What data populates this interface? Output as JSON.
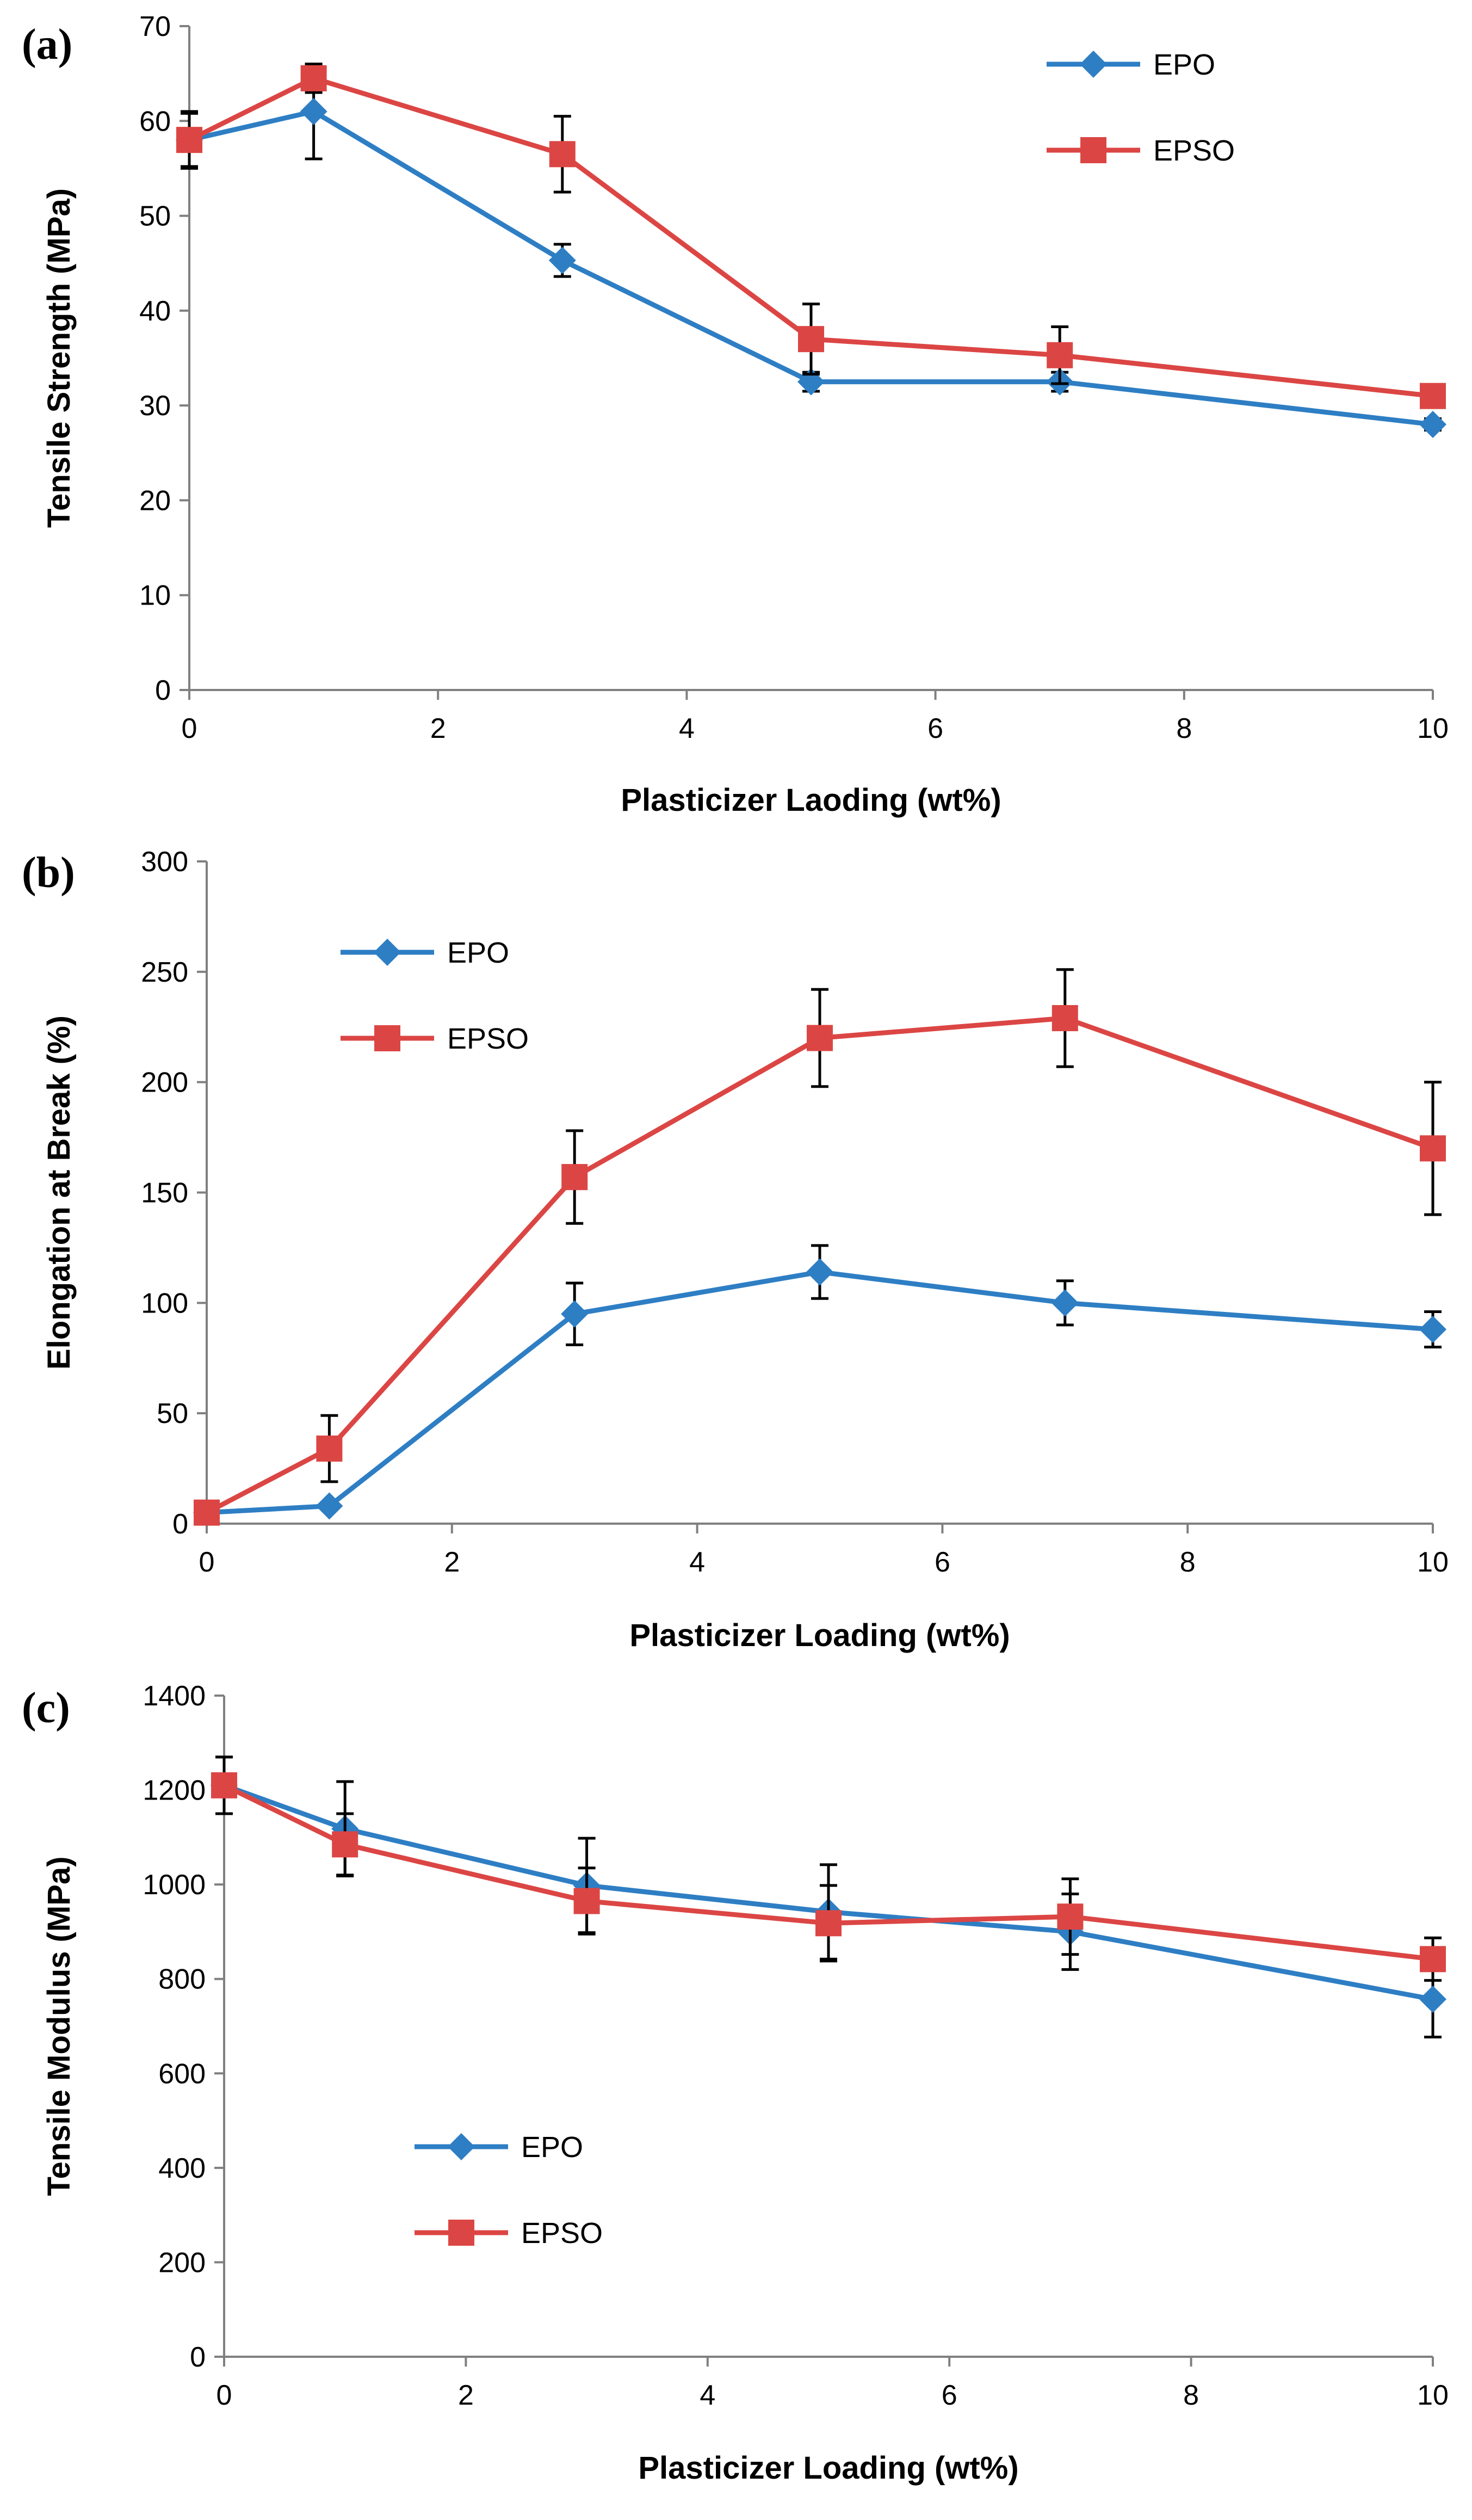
{
  "colors": {
    "EPO": "#2E7EC4",
    "EPSO": "#DB4644",
    "axis": "#808080",
    "error_bar": "#000000"
  },
  "chart_data": [
    {
      "panel": "(a)",
      "type": "line",
      "title": "",
      "xlabel": "Plasticizer Laoding (wt%)",
      "ylabel": "Tensile Strength (MPa)",
      "xlim": [
        0,
        10
      ],
      "ylim": [
        0,
        70
      ],
      "xticks": [
        0,
        2,
        4,
        6,
        8,
        10
      ],
      "yticks": [
        0,
        10,
        20,
        30,
        40,
        50,
        60,
        70
      ],
      "x": [
        0,
        1,
        3,
        5,
        7,
        10
      ],
      "legend_position": "top-right",
      "series": [
        {
          "name": "EPO",
          "marker": "diamond",
          "color": "#2E7EC4",
          "values": [
            58,
            61,
            45.3,
            32.5,
            32.5,
            28
          ],
          "error": [
            3,
            5,
            1.7,
            1,
            1,
            0.6
          ]
        },
        {
          "name": "EPSO",
          "marker": "square",
          "color": "#DB4644",
          "values": [
            58,
            64.5,
            56.5,
            37,
            35.3,
            31
          ],
          "error": [
            2.8,
            1.5,
            4,
            3.7,
            3,
            0.5
          ]
        }
      ]
    },
    {
      "panel": "(b)",
      "type": "line",
      "title": "",
      "xlabel": "Plasticizer Loading (wt%)",
      "ylabel": "Elongation at Break (%)",
      "xlim": [
        0,
        10
      ],
      "ylim": [
        0,
        300
      ],
      "xticks": [
        0,
        2,
        4,
        6,
        8,
        10
      ],
      "yticks": [
        0,
        50,
        100,
        150,
        200,
        250,
        300
      ],
      "x": [
        0,
        1,
        3,
        5,
        7,
        10
      ],
      "legend_position": "top-left",
      "series": [
        {
          "name": "EPO",
          "marker": "diamond",
          "color": "#2E7EC4",
          "values": [
            5,
            8,
            95,
            114,
            100,
            88
          ],
          "error": [
            1,
            1,
            14,
            12,
            10,
            8
          ]
        },
        {
          "name": "EPSO",
          "marker": "square",
          "color": "#DB4644",
          "values": [
            5,
            34,
            157,
            220,
            229,
            170
          ],
          "error": [
            1,
            15,
            21,
            22,
            22,
            30
          ]
        }
      ]
    },
    {
      "panel": "(c)",
      "type": "line",
      "title": "",
      "xlabel": "Plasticizer Loading (wt%)",
      "ylabel": "Tensile Modulus (MPa)",
      "xlim": [
        0,
        10
      ],
      "ylim": [
        0,
        1400
      ],
      "xticks": [
        0,
        2,
        4,
        6,
        8,
        10
      ],
      "yticks": [
        0,
        200,
        400,
        600,
        800,
        1000,
        1200,
        1400
      ],
      "x": [
        0,
        1,
        3,
        5,
        7,
        10
      ],
      "legend_position": "bottom-left",
      "series": [
        {
          "name": "EPO",
          "marker": "diamond",
          "color": "#2E7EC4",
          "values": [
            1210,
            1118,
            998,
            942,
            900,
            757
          ],
          "error": [
            60,
            100,
            100,
            100,
            80,
            80
          ]
        },
        {
          "name": "EPSO",
          "marker": "square",
          "color": "#DB4644",
          "values": [
            1210,
            1085,
            965,
            918,
            932,
            842
          ],
          "error": [
            60,
            65,
            70,
            80,
            80,
            45
          ]
        }
      ]
    }
  ]
}
